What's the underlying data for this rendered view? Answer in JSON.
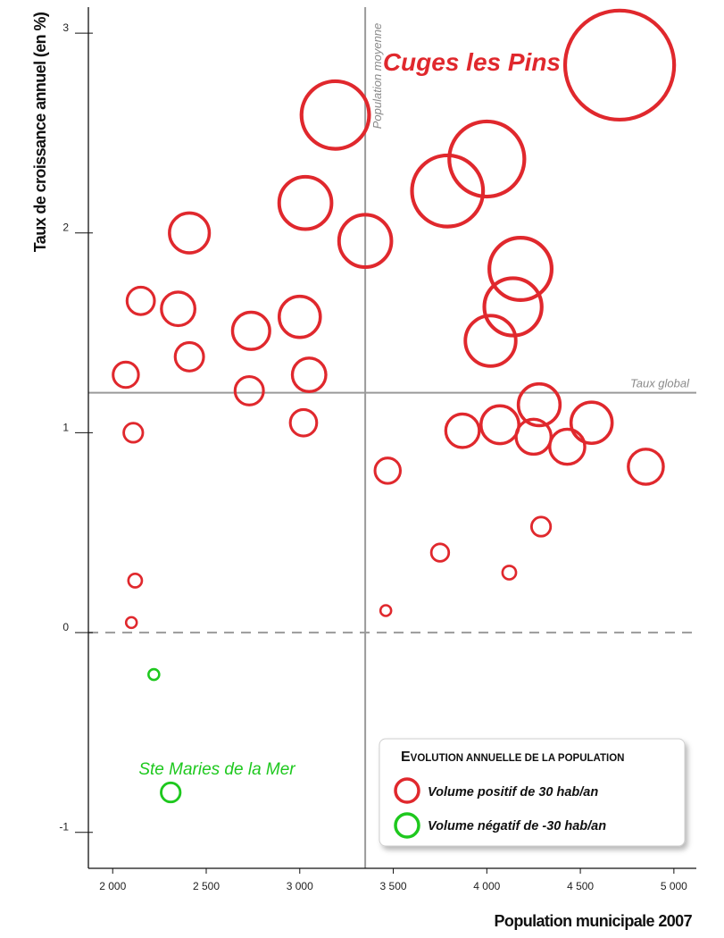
{
  "chart_data": {
    "type": "scatter",
    "title": "",
    "xlabel": "Population municipale 2007",
    "ylabel": "Taux de croissance annuel (en %)",
    "xlim": [
      1870,
      5120
    ],
    "ylim": [
      -1.18,
      3.13
    ],
    "xticks": [
      2000,
      2500,
      3000,
      3500,
      4000,
      4500,
      5000
    ],
    "xtick_labels": [
      "2 000",
      "2 500",
      "3 000",
      "3 500",
      "4 000",
      "4 500",
      "5 000"
    ],
    "yticks": [
      -1,
      0,
      1,
      2,
      3
    ],
    "ytick_labels": [
      "-1",
      "0",
      "1",
      "2",
      "3"
    ],
    "grid": false,
    "reference_lines": {
      "population_moyenne": {
        "x": 3350,
        "label": "Population moyenne"
      },
      "taux_global": {
        "y": 1.2,
        "label": "Taux global"
      },
      "zero_line": {
        "y": 0
      }
    },
    "size_encoding": "volume annuel de population (hab/an)",
    "colors": {
      "positive": "#e0282d",
      "negative": "#1ec81e",
      "reference": "#9a9a9a"
    },
    "series": [
      {
        "name": "Volume positif de 30 hab/an",
        "color": "#e0282d",
        "points": [
          {
            "x": 4710,
            "y": 2.84,
            "size": 240,
            "label": "Cuges les Pins"
          },
          {
            "x": 3190,
            "y": 2.59,
            "size": 88
          },
          {
            "x": 4000,
            "y": 2.37,
            "size": 110
          },
          {
            "x": 3790,
            "y": 2.21,
            "size": 98
          },
          {
            "x": 3030,
            "y": 2.15,
            "size": 51
          },
          {
            "x": 3350,
            "y": 1.96,
            "size": 51
          },
          {
            "x": 4180,
            "y": 1.82,
            "size": 74
          },
          {
            "x": 4140,
            "y": 1.63,
            "size": 62
          },
          {
            "x": 4020,
            "y": 1.46,
            "size": 47
          },
          {
            "x": 2410,
            "y": 2.0,
            "size": 28
          },
          {
            "x": 2150,
            "y": 1.66,
            "size": 12
          },
          {
            "x": 2350,
            "y": 1.62,
            "size": 19
          },
          {
            "x": 3000,
            "y": 1.58,
            "size": 30
          },
          {
            "x": 2740,
            "y": 1.51,
            "size": 24
          },
          {
            "x": 2410,
            "y": 1.38,
            "size": 13
          },
          {
            "x": 3050,
            "y": 1.29,
            "size": 19
          },
          {
            "x": 2070,
            "y": 1.29,
            "size": 10
          },
          {
            "x": 2730,
            "y": 1.21,
            "size": 13
          },
          {
            "x": 3020,
            "y": 1.05,
            "size": 11
          },
          {
            "x": 2110,
            "y": 1.0,
            "size": 5
          },
          {
            "x": 4280,
            "y": 1.14,
            "size": 31
          },
          {
            "x": 4560,
            "y": 1.05,
            "size": 30
          },
          {
            "x": 4070,
            "y": 1.04,
            "size": 25
          },
          {
            "x": 3870,
            "y": 1.01,
            "size": 19
          },
          {
            "x": 4250,
            "y": 0.98,
            "size": 21
          },
          {
            "x": 4430,
            "y": 0.93,
            "size": 21
          },
          {
            "x": 4850,
            "y": 0.83,
            "size": 21
          },
          {
            "x": 3470,
            "y": 0.81,
            "size": 10
          },
          {
            "x": 4290,
            "y": 0.53,
            "size": 5
          },
          {
            "x": 3750,
            "y": 0.4,
            "size": 4
          },
          {
            "x": 4120,
            "y": 0.3,
            "size": 2
          },
          {
            "x": 2120,
            "y": 0.26,
            "size": 2
          },
          {
            "x": 3460,
            "y": 0.11,
            "size": 1
          },
          {
            "x": 2100,
            "y": 0.05,
            "size": 1
          }
        ]
      },
      {
        "name": "Volume négatif de -30 hab/an",
        "color": "#1ec81e",
        "points": [
          {
            "x": 2220,
            "y": -0.21,
            "size": 1
          },
          {
            "x": 2310,
            "y": -0.8,
            "size": 5,
            "label": "Ste Maries de la Mer"
          }
        ]
      }
    ],
    "annotations": [
      {
        "text": "Cuges les Pins",
        "color": "#e0282d"
      },
      {
        "text": "Ste Maries de la Mer",
        "color": "#1ec81e"
      }
    ],
    "legend": {
      "title_initial": "E",
      "title_rest": "VOLUTION ANNUELLE DE LA POPULATION",
      "placement": "bottom-right",
      "items": [
        {
          "label": "Volume positif de 30 hab/an",
          "color": "#e0282d"
        },
        {
          "label": "Volume négatif de -30 hab/an",
          "color": "#1ec81e"
        }
      ]
    }
  }
}
